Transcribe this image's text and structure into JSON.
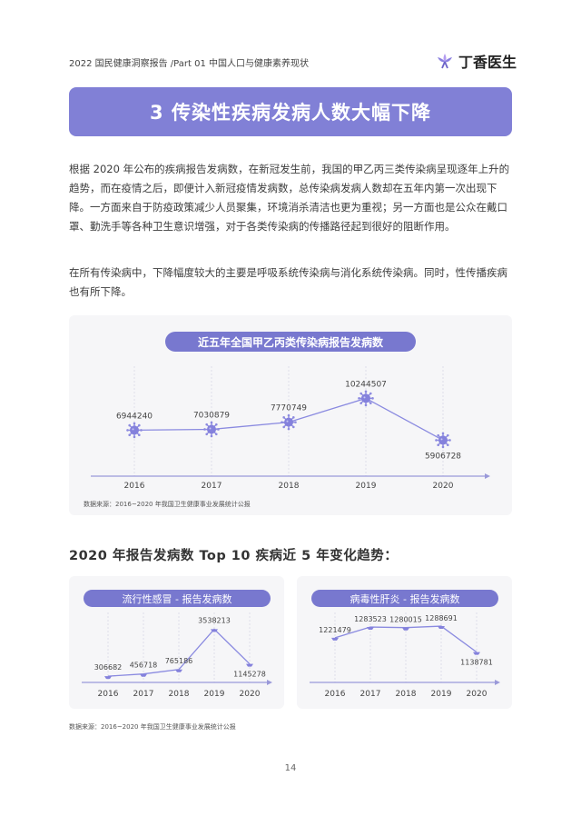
{
  "header": {
    "report_title": "2022 国民健康洞察报告 /Part 01 中国人口与健康素养现状",
    "brand_name": "丁香医生",
    "brand_color": "#8b80e0"
  },
  "section": {
    "title": "3 传染性疾病发病人数大幅下降",
    "paragraph1": "根据 2020 年公布的疾病报告发病数，在新冠发生前，我国的甲乙丙三类传染病呈现逐年上升的趋势，而在疫情之后，即便计入新冠疫情发病数，总传染病发病人数却在五年内第一次出现下降。一方面来自于防疫政策减少人员聚集，环境消杀清洁也更为重视；另一方面也是公众在戴口罩、勤洗手等各种卫生意识增强，对于各类传染病的传播路径起到很好的阻断作用。",
    "paragraph2": "在所有传染病中，下降幅度较大的主要是呼吸系统传染病与消化系统传染病。同时，性传播疾病也有所下降。"
  },
  "sub_heading": "2020 年报告发病数 Top 10 疾病近 5 年变化趋势：",
  "colors": {
    "accent": "#7878cf",
    "line": "#8a8ae0",
    "axis": "#9a99d9"
  },
  "chart_data": [
    {
      "type": "line",
      "title": "近五年全国甲乙丙类传染病报告发病数",
      "categories": [
        "2016",
        "2017",
        "2018",
        "2019",
        "2020"
      ],
      "values": [
        6944240,
        7030879,
        7770749,
        10244507,
        5906728
      ],
      "labels": [
        "6944240",
        "7030879",
        "7770749",
        "10244507",
        "5906728"
      ],
      "ylim": [
        3500000,
        11500000
      ],
      "source": "数据来源：2016~2020 年我国卫生健康事业发展统计公报"
    },
    {
      "type": "line",
      "title": "流行性感冒 - 报告发病数",
      "categories": [
        "2016",
        "2017",
        "2018",
        "2019",
        "2020"
      ],
      "values": [
        306682,
        456718,
        765186,
        3538213,
        1145278
      ],
      "labels": [
        "306682",
        "456718",
        "765186",
        "3538213",
        "1145278"
      ],
      "ylim": [
        0,
        4000000
      ]
    },
    {
      "type": "line",
      "title": "病毒性肝炎 - 报告发病数",
      "categories": [
        "2016",
        "2017",
        "2018",
        "2019",
        "2020"
      ],
      "values": [
        1221479,
        1283523,
        1280015,
        1288691,
        1138781
      ],
      "labels": [
        "1221479",
        "1283523",
        "1280015",
        "1288691",
        "1138781"
      ],
      "ylim": [
        1100000,
        1310000
      ]
    }
  ],
  "bottom_source": "数据来源：2016~2020 年我国卫生健康事业发展统计公报",
  "page_number": "14"
}
